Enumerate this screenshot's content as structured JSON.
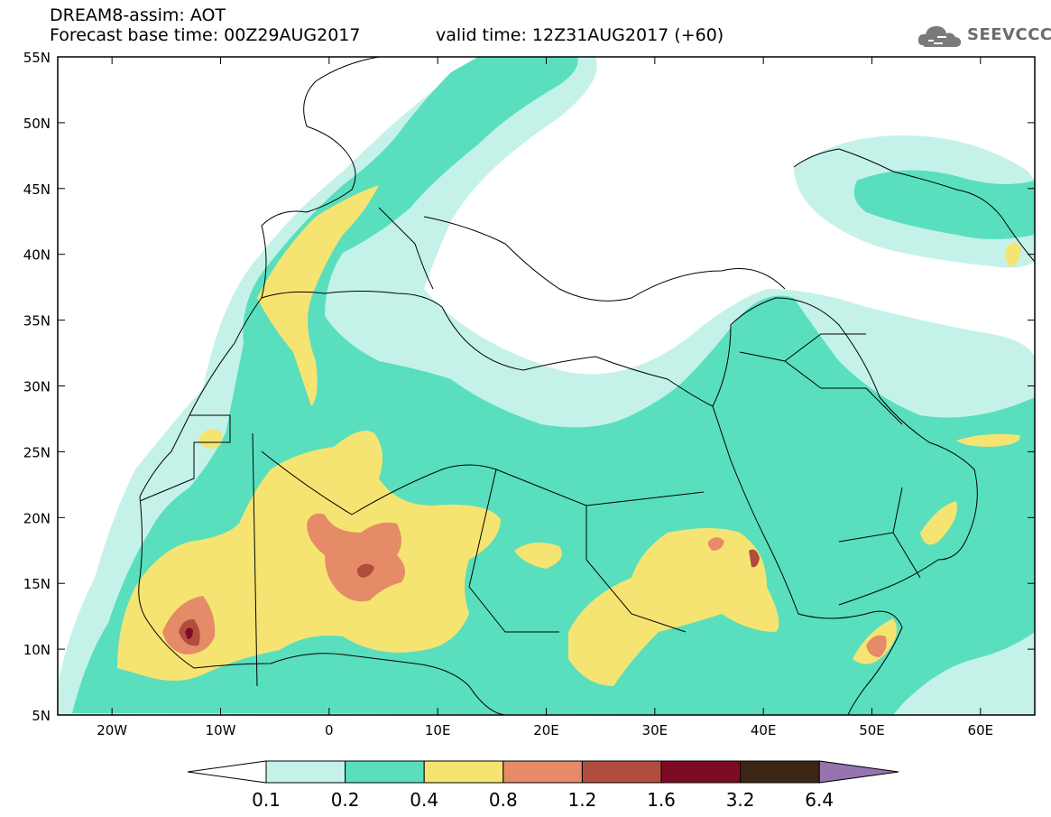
{
  "header": {
    "line1": "DREAM8-assim: AOT",
    "line2": "Forecast base time: 00Z29AUG2017",
    "line3": "valid time: 12Z31AUG2017 (+60)"
  },
  "logo": {
    "text": "SEEVCCC",
    "icon": "cloud-icon"
  },
  "map": {
    "lat_labels": [
      "55N",
      "50N",
      "45N",
      "40N",
      "35N",
      "30N",
      "25N",
      "20N",
      "15N",
      "10N",
      "5N"
    ],
    "lon_labels": [
      "20W",
      "10W",
      "0",
      "10E",
      "20E",
      "30E",
      "40E",
      "50E",
      "60E"
    ],
    "lat_range": [
      5,
      55
    ],
    "lon_range": [
      -25,
      65
    ]
  },
  "legend": {
    "ticks": [
      "0.1",
      "0.2",
      "0.4",
      "0.8",
      "1.2",
      "1.6",
      "3.2",
      "6.4"
    ],
    "colors": [
      "#c4f2e9",
      "#59dfbd",
      "#f6e472",
      "#e58b67",
      "#b04d3e",
      "#7e0b25",
      "#3b2616",
      "#9574b0"
    ],
    "under_color": "#ffffff"
  }
}
